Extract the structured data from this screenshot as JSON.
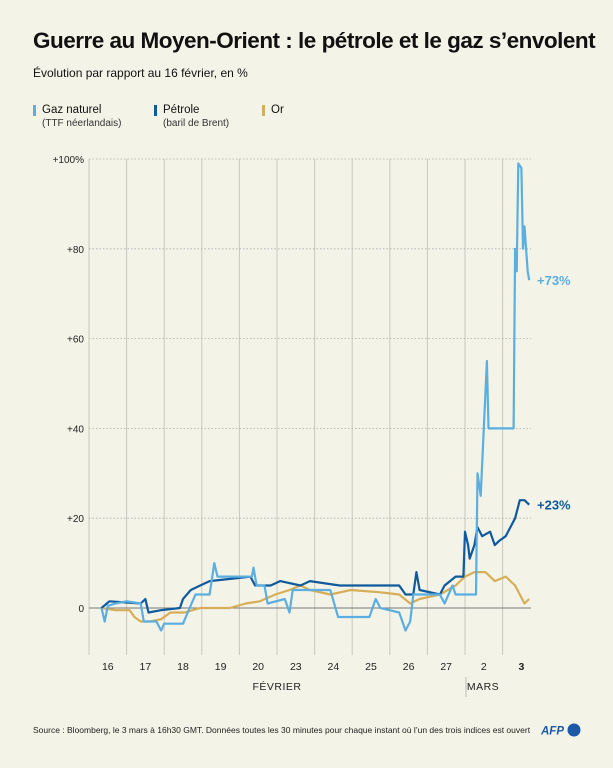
{
  "title": "Guerre au Moyen-Orient : le pétrole et le gaz s’envolent",
  "subtitle": "Évolution par rapport au 16 février, en %",
  "legend": [
    {
      "name": "Gaz naturel",
      "detail": "(TTF néerlandais)",
      "color": "#5aaee0"
    },
    {
      "name": "Pétrole",
      "detail": "(baril de Brent)",
      "color": "#0f5a9c"
    },
    {
      "name": "Or",
      "detail": "",
      "color": "#d6ae58"
    }
  ],
  "footer": "Source : Bloomberg, le 3 mars à 16h30 GMT. Données toutes les 30 minutes pour chaque instant où l’un des trois indices est ouvert",
  "logo_text": "AFP",
  "chart_data": {
    "type": "line",
    "title": "Guerre au Moyen-Orient : le pétrole et le gaz s’envolent",
    "subtitle": "Évolution par rapport au 16 février, en %",
    "xlabel": "",
    "ylabel": "",
    "ylim": [
      -10,
      100
    ],
    "yticks": [
      0,
      20,
      40,
      60,
      80,
      100
    ],
    "ytick_labels": [
      "0",
      "+20",
      "+40",
      "+60",
      "+80",
      "+100%"
    ],
    "categories": [
      "16",
      "17",
      "18",
      "19",
      "20",
      "23",
      "24",
      "25",
      "26",
      "27",
      "2",
      "3"
    ],
    "category_months": [
      "02",
      "02",
      "02",
      "02",
      "02",
      "02",
      "02",
      "02",
      "02",
      "02",
      "03",
      "03"
    ],
    "months": [
      {
        "label": "FÉVRIER",
        "first": "16"
      },
      {
        "label": "MARS",
        "first": "2"
      }
    ],
    "grid": "horizontal dotted, vertical per day",
    "legend_position": "top-left",
    "series": [
      {
        "name": "Gaz naturel",
        "color": "#5aaee0",
        "end_label": "+73%",
        "points": [
          [
            "16/02 08h",
            0
          ],
          [
            "16/02 10h",
            -3
          ],
          [
            "16/02 12h",
            0.5
          ],
          [
            "16/02 17h",
            1
          ],
          [
            "17/02 00h",
            1.5
          ],
          [
            "17/02 09h",
            1
          ],
          [
            "17/02 11h",
            -3
          ],
          [
            "17/02 19h",
            -3
          ],
          [
            "17/02 22h",
            -5
          ],
          [
            "18/02 00h",
            -3.5
          ],
          [
            "18/02 12h",
            -3.5
          ],
          [
            "18/02 15h",
            -1
          ],
          [
            "18/02 20h",
            3
          ],
          [
            "19/02 05h",
            3
          ],
          [
            "19/02 08h",
            10
          ],
          [
            "19/02 10h",
            7
          ],
          [
            "20/02 08h",
            7
          ],
          [
            "20/02 09h",
            9
          ],
          [
            "20/02 11h",
            5
          ],
          [
            "20/02 16h",
            5
          ],
          [
            "20/02 18h",
            1
          ],
          [
            "23/02 05h",
            2
          ],
          [
            "23/02 08h",
            -1
          ],
          [
            "23/02 10h",
            4
          ],
          [
            "24/02 10h",
            4
          ],
          [
            "24/02 15h",
            -2
          ],
          [
            "25/02 11h",
            -2
          ],
          [
            "25/02 15h",
            2
          ],
          [
            "25/02 18h",
            0
          ],
          [
            "26/02 06h",
            -1
          ],
          [
            "26/02 10h",
            -5
          ],
          [
            "26/02 13h",
            -3
          ],
          [
            "26/02 15h",
            3
          ],
          [
            "27/02 08h",
            3
          ],
          [
            "27/02 11h",
            1
          ],
          [
            "27/02 16h",
            5
          ],
          [
            "27/02 18h",
            3
          ],
          [
            "02/03 07h",
            3
          ],
          [
            "02/03 08h",
            30
          ],
          [
            "02/03 10h",
            25
          ],
          [
            "02/03 12h",
            40
          ],
          [
            "02/03 14h",
            55
          ],
          [
            "02/03 15h",
            40
          ],
          [
            "02/03 17h",
            40
          ],
          [
            "03/03 07h",
            40
          ],
          [
            "03/03 08h",
            80
          ],
          [
            "03/03 09h",
            75
          ],
          [
            "03/03 10h",
            99
          ],
          [
            "03/03 12h",
            98
          ],
          [
            "03/03 13h",
            80
          ],
          [
            "03/03 14h",
            85
          ],
          [
            "03/03 16h",
            75
          ],
          [
            "03/03 17h",
            73
          ]
        ]
      },
      {
        "name": "Pétrole",
        "color": "#0f5a9c",
        "end_label": "+23%",
        "points": [
          [
            "16/02 08h",
            0
          ],
          [
            "16/02 13h",
            1.5
          ],
          [
            "17/02 09h",
            1
          ],
          [
            "17/02 12h",
            2
          ],
          [
            "17/02 14h",
            -1
          ],
          [
            "17/02 22h",
            -0.5
          ],
          [
            "18/02 10h",
            0
          ],
          [
            "18/02 12h",
            2
          ],
          [
            "18/02 17h",
            4
          ],
          [
            "18/02 23h",
            5
          ],
          [
            "19/02 05h",
            6
          ],
          [
            "20/02 07h",
            7
          ],
          [
            "20/02 10h",
            5
          ],
          [
            "20/02 20h",
            5
          ],
          [
            "23/02 02h",
            6
          ],
          [
            "23/02 15h",
            5
          ],
          [
            "23/02 21h",
            6
          ],
          [
            "24/02 16h",
            5
          ],
          [
            "25/02 18h",
            5
          ],
          [
            "26/02 06h",
            5
          ],
          [
            "26/02 10h",
            3
          ],
          [
            "26/02 15h",
            3
          ],
          [
            "26/02 17h",
            8
          ],
          [
            "26/02 19h",
            4
          ],
          [
            "27/02 08h",
            3
          ],
          [
            "27/02 11h",
            5
          ],
          [
            "27/02 18h",
            7
          ],
          [
            "27/02 23h",
            7
          ],
          [
            "02/03 00h",
            17
          ],
          [
            "02/03 02h",
            14
          ],
          [
            "02/03 03h",
            11
          ],
          [
            "02/03 06h",
            14
          ],
          [
            "02/03 08h",
            18
          ],
          [
            "02/03 11h",
            16
          ],
          [
            "02/03 16h",
            17
          ],
          [
            "02/03 19h",
            14
          ],
          [
            "02/03 22h",
            15
          ],
          [
            "03/03 02h",
            16
          ],
          [
            "03/03 05h",
            18
          ],
          [
            "03/03 08h",
            20
          ],
          [
            "03/03 11h",
            24
          ],
          [
            "03/03 14h",
            24
          ],
          [
            "03/03 17h",
            23
          ]
        ]
      },
      {
        "name": "Or",
        "color": "#d6ae58",
        "end_label": "",
        "points": [
          [
            "16/02 08h",
            0
          ],
          [
            "16/02 17h",
            -0.5
          ],
          [
            "17/02 02h",
            -0.5
          ],
          [
            "17/02 05h",
            -2
          ],
          [
            "17/02 09h",
            -3
          ],
          [
            "17/02 15h",
            -3
          ],
          [
            "17/02 22h",
            -2.5
          ],
          [
            "18/02 04h",
            -1
          ],
          [
            "18/02 13h",
            -1
          ],
          [
            "18/02 23h",
            0
          ],
          [
            "19/02 18h",
            0
          ],
          [
            "20/02 04h",
            1
          ],
          [
            "20/02 13h",
            1.5
          ],
          [
            "20/02 23h",
            3
          ],
          [
            "23/02 08h",
            4
          ],
          [
            "23/02 15h",
            5
          ],
          [
            "23/02 21h",
            4
          ],
          [
            "24/02 10h",
            3
          ],
          [
            "24/02 23h",
            4
          ],
          [
            "25/02 18h",
            3.5
          ],
          [
            "26/02 06h",
            3
          ],
          [
            "26/02 13h",
            1
          ],
          [
            "26/02 19h",
            2
          ],
          [
            "27/02 08h",
            3
          ],
          [
            "27/02 18h",
            5
          ],
          [
            "02/03 00h",
            7
          ],
          [
            "02/03 06h",
            8
          ],
          [
            "02/03 13h",
            8
          ],
          [
            "02/03 19h",
            6
          ],
          [
            "03/03 02h",
            7
          ],
          [
            "03/03 08h",
            5
          ],
          [
            "03/03 11h",
            3
          ],
          [
            "03/03 14h",
            1
          ],
          [
            "03/03 17h",
            2
          ]
        ]
      }
    ]
  }
}
